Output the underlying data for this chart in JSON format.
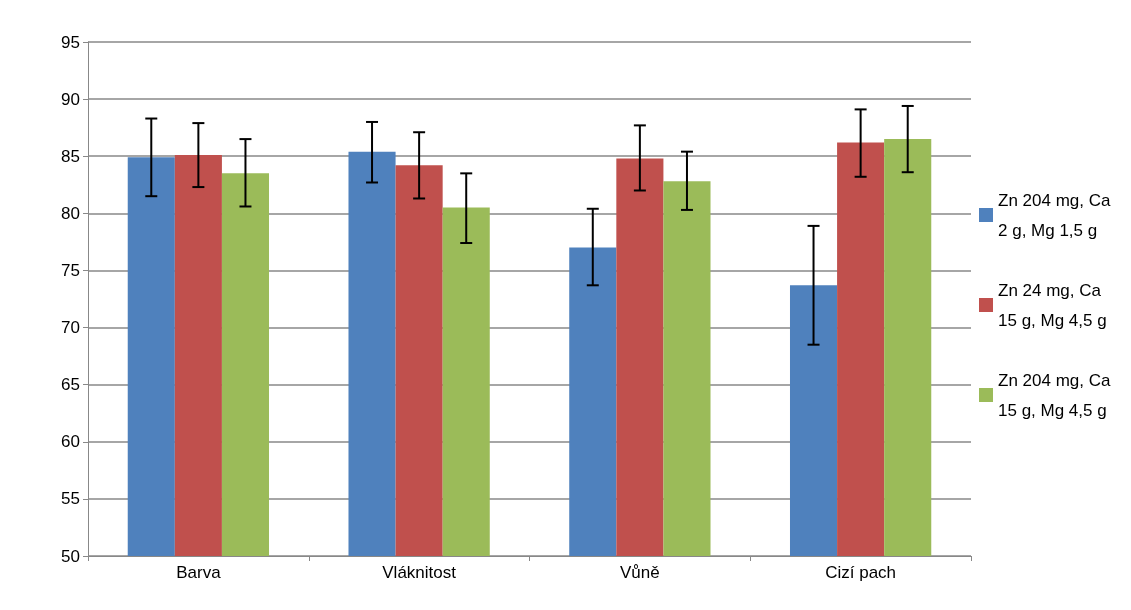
{
  "chart_data": {
    "type": "bar",
    "categories": [
      "Barva",
      "Vláknitost",
      "Vůně",
      "Cizí pach"
    ],
    "series": [
      {
        "name": "Zn 204 mg, Ca 2 g, Mg 1,5 g",
        "color": "#4f81bd",
        "values": [
          84.9,
          85.4,
          77.0,
          73.7
        ],
        "errors": [
          [
            81.5,
            88.3
          ],
          [
            82.7,
            88.0
          ],
          [
            73.7,
            80.4
          ],
          [
            68.5,
            78.9
          ]
        ]
      },
      {
        "name": "Zn 24 mg, Ca 15 g, Mg 4,5 g",
        "color": "#c0504d",
        "values": [
          85.1,
          84.2,
          84.8,
          86.2
        ],
        "errors": [
          [
            82.3,
            87.9
          ],
          [
            81.3,
            87.1
          ],
          [
            82.0,
            87.7
          ],
          [
            83.2,
            89.1
          ]
        ]
      },
      {
        "name": "Zn 204 mg, Ca 15 g, Mg 4,5 g",
        "color": "#9bbb59",
        "values": [
          83.5,
          80.5,
          82.8,
          86.5
        ],
        "errors": [
          [
            80.6,
            86.5
          ],
          [
            77.4,
            83.5
          ],
          [
            80.3,
            85.4
          ],
          [
            83.6,
            89.4
          ]
        ]
      }
    ],
    "ylim": [
      50,
      95
    ],
    "yticks": [
      50,
      55,
      60,
      65,
      70,
      75,
      80,
      85,
      90,
      95
    ],
    "grid": "y",
    "legend": "right"
  }
}
